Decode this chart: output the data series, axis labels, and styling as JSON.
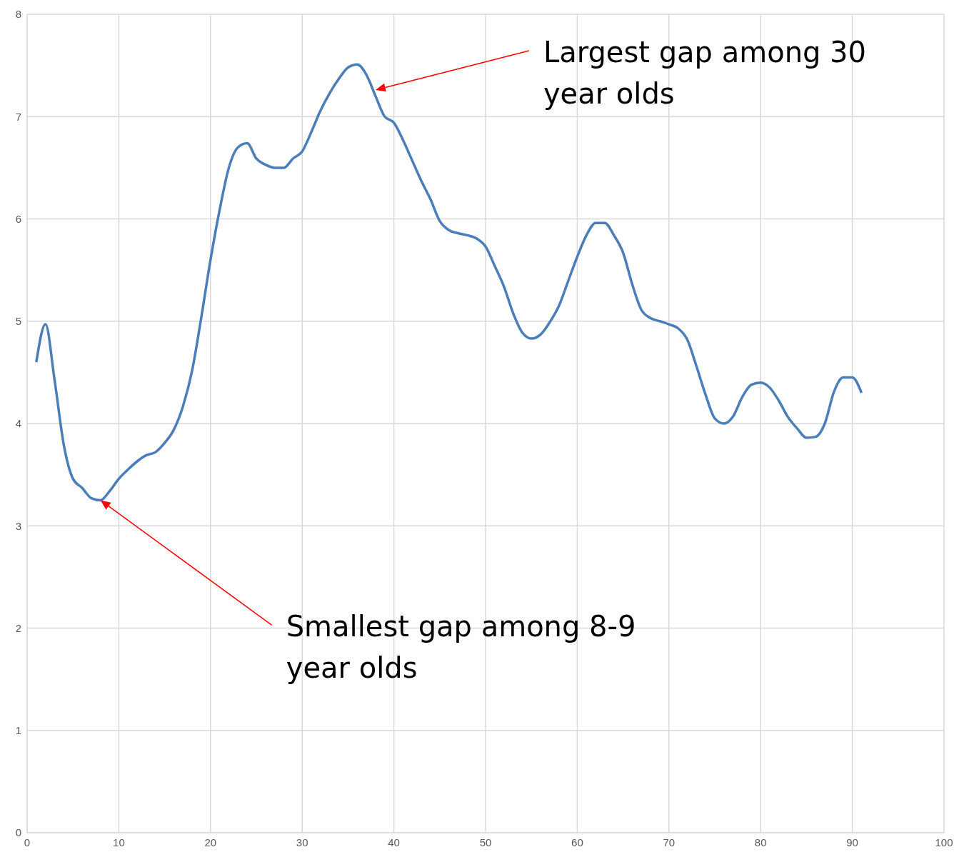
{
  "chart_data": {
    "type": "line",
    "x": [
      1,
      2,
      3,
      4,
      5,
      6,
      7,
      8,
      9,
      10,
      11,
      12,
      13,
      14,
      15,
      16,
      17,
      18,
      19,
      20,
      21,
      22,
      23,
      24,
      25,
      26,
      27,
      28,
      29,
      30,
      31,
      32,
      33,
      34,
      35,
      36,
      37,
      38,
      39,
      40,
      41,
      42,
      43,
      44,
      45,
      46,
      47,
      48,
      49,
      50,
      51,
      52,
      53,
      54,
      55,
      56,
      57,
      58,
      59,
      60,
      61,
      62,
      63,
      64,
      65,
      66,
      67,
      68,
      69,
      70,
      71,
      72,
      73,
      74,
      75,
      76,
      77,
      78,
      79,
      80,
      81,
      82,
      83,
      84,
      85,
      86,
      87,
      88,
      89,
      90,
      91
    ],
    "series": [
      {
        "color": "#4a7ebb",
        "values": [
          4.6,
          4.97,
          4.42,
          3.79,
          3.46,
          3.37,
          3.27,
          3.25,
          3.34,
          3.46,
          3.55,
          3.63,
          3.69,
          3.72,
          3.81,
          3.94,
          4.17,
          4.52,
          5.04,
          5.6,
          6.09,
          6.5,
          6.7,
          6.74,
          6.59,
          6.53,
          6.5,
          6.5,
          6.59,
          6.66,
          6.85,
          7.06,
          7.23,
          7.37,
          7.48,
          7.51,
          7.41,
          7.2,
          7.0,
          6.94,
          6.77,
          6.57,
          6.37,
          6.19,
          5.98,
          5.89,
          5.86,
          5.84,
          5.81,
          5.73,
          5.54,
          5.34,
          5.08,
          4.89,
          4.83,
          4.87,
          4.99,
          5.15,
          5.39,
          5.63,
          5.84,
          5.96,
          5.96,
          5.84,
          5.67,
          5.36,
          5.11,
          5.03,
          5.0,
          4.97,
          4.93,
          4.82,
          4.56,
          4.28,
          4.05,
          4.0,
          4.07,
          4.26,
          4.38,
          4.4,
          4.35,
          4.22,
          4.06,
          3.95,
          3.86,
          3.87,
          4.0,
          4.31,
          4.45,
          4.45,
          4.3
        ]
      }
    ],
    "xlim": [
      0,
      100
    ],
    "xticks": [
      0,
      10,
      20,
      30,
      40,
      50,
      60,
      70,
      80,
      90,
      100
    ],
    "ylim": [
      0,
      8
    ],
    "yticks": [
      0,
      1,
      2,
      3,
      4,
      5,
      6,
      7,
      8
    ],
    "grid": true,
    "marker": "none",
    "line_style": "solid",
    "annotations": [
      "Largest gap among 30 year olds",
      "Smallest gap among 8-9 year olds"
    ]
  }
}
